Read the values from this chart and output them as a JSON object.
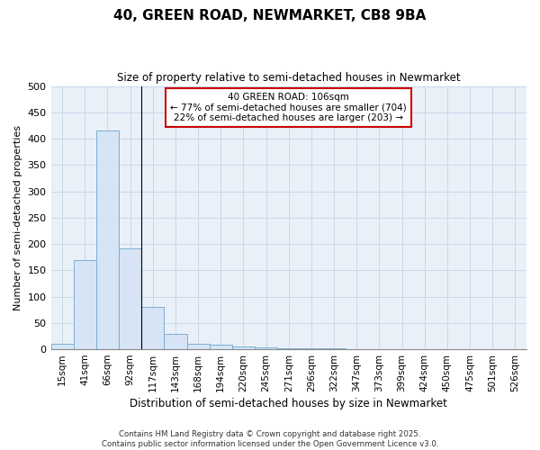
{
  "title": "40, GREEN ROAD, NEWMARKET, CB8 9BA",
  "subtitle": "Size of property relative to semi-detached houses in Newmarket",
  "xlabel": "Distribution of semi-detached houses by size in Newmarket",
  "ylabel": "Number of semi-detached properties",
  "bin_labels": [
    "15sqm",
    "41sqm",
    "66sqm",
    "92sqm",
    "117sqm",
    "143sqm",
    "168sqm",
    "194sqm",
    "220sqm",
    "245sqm",
    "271sqm",
    "296sqm",
    "322sqm",
    "347sqm",
    "373sqm",
    "399sqm",
    "424sqm",
    "450sqm",
    "475sqm",
    "501sqm",
    "526sqm"
  ],
  "bar_values": [
    10,
    170,
    415,
    192,
    80,
    30,
    10,
    8,
    5,
    3,
    2,
    2,
    1,
    0,
    0,
    0,
    0,
    0,
    0,
    0,
    0
  ],
  "bar_color": "#d6e4f5",
  "bar_edge_color": "#7aafd4",
  "ylim": [
    0,
    500
  ],
  "yticks": [
    0,
    50,
    100,
    150,
    200,
    250,
    300,
    350,
    400,
    450,
    500
  ],
  "vline_x_index": 3,
  "annotation_title": "40 GREEN ROAD: 106sqm",
  "annotation_line1": "← 77% of semi-detached houses are smaller (704)",
  "annotation_line2": "22% of semi-detached houses are larger (203) →",
  "annotation_color": "#cc0000",
  "vline_color": "#000000",
  "grid_color": "#c8d8ea",
  "background_color": "#eaf0f8",
  "fig_background": "#ffffff",
  "footnote1": "Contains HM Land Registry data © Crown copyright and database right 2025.",
  "footnote2": "Contains public sector information licensed under the Open Government Licence v3.0."
}
